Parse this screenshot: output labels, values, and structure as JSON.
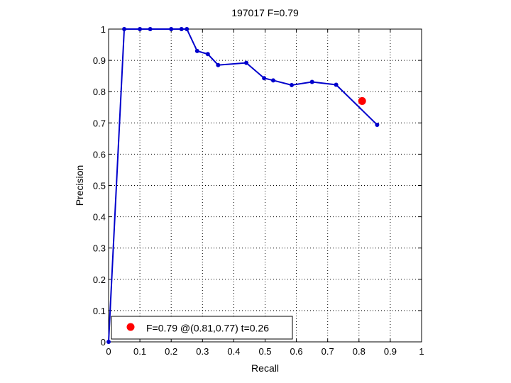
{
  "chart_data": {
    "type": "line",
    "title": "197017 F=0.79",
    "xlabel": "Recall",
    "ylabel": "Precision",
    "xlim": [
      0,
      1
    ],
    "ylim": [
      0,
      1
    ],
    "xticks": [
      0,
      0.1,
      0.2,
      0.3,
      0.4,
      0.5,
      0.6,
      0.7,
      0.8,
      0.9,
      1
    ],
    "yticks": [
      0,
      0.1,
      0.2,
      0.3,
      0.4,
      0.5,
      0.6,
      0.7,
      0.8,
      0.9,
      1
    ],
    "xtick_labels": [
      "0",
      "0.1",
      "0.2",
      "0.3",
      "0.4",
      "0.5",
      "0.6",
      "0.7",
      "0.8",
      "0.9",
      "1"
    ],
    "ytick_labels": [
      "0",
      "0.1",
      "0.2",
      "0.3",
      "0.4",
      "0.5",
      "0.6",
      "0.7",
      "0.8",
      "0.9",
      "1"
    ],
    "grid": true,
    "legend_position": "bottom-left",
    "series": [
      {
        "color": "#0000cc",
        "x": [
          0,
          0.05,
          0.1,
          0.133,
          0.2,
          0.233,
          0.25,
          0.283,
          0.317,
          0.35,
          0.44,
          0.497,
          0.526,
          0.585,
          0.65,
          0.727,
          0.858
        ],
        "y": [
          0,
          1,
          1,
          1,
          1,
          1,
          1,
          0.93,
          0.92,
          0.885,
          0.892,
          0.843,
          0.836,
          0.821,
          0.831,
          0.822,
          0.694
        ]
      }
    ],
    "highlight": {
      "x": 0.81,
      "y": 0.77,
      "color": "#ff0000",
      "label": "F=0.79 @(0.81,0.77) t=0.26"
    }
  }
}
